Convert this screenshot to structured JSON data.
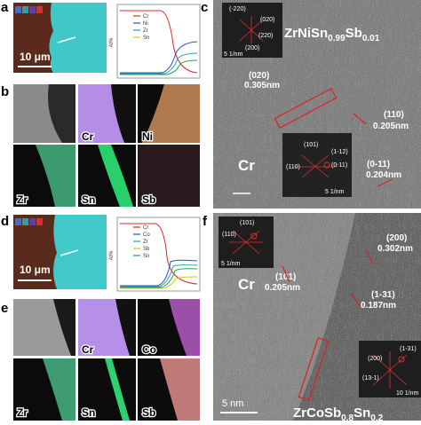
{
  "panels": {
    "a": {
      "label": "a",
      "scale": "10 μm",
      "ylabel": "At%",
      "legend": [
        "Cr",
        "Ni",
        "Zr",
        "Sn"
      ]
    },
    "b": {
      "label": "b",
      "maps": [
        "Cr",
        "Ni",
        "Zr",
        "Sn",
        "Sb"
      ]
    },
    "c": {
      "label": "c",
      "formula": [
        "ZrNiSn",
        "0.99",
        "Sb",
        "0.01"
      ],
      "fft1": [
        "(-220)",
        "(020)",
        "(220)",
        "(200)",
        "5 1/nm"
      ],
      "notes": [
        "(020)",
        "0.305nm",
        "(110)",
        "0.205nm",
        "Cr",
        "(0-11)",
        "0.204nm"
      ],
      "fft2": [
        "(101)",
        "(1-12)",
        "(110)",
        "(0-11)",
        "5 1/nm"
      ]
    },
    "d": {
      "label": "d",
      "scale": "10 μm",
      "ylabel": "At%",
      "legend": [
        "Cr",
        "Co",
        "Zr",
        "Sb",
        "Sn"
      ]
    },
    "e": {
      "label": "e",
      "maps": [
        "Cr",
        "Co",
        "Zr",
        "Sn",
        "Sb"
      ]
    },
    "f": {
      "label": "f",
      "formula": [
        "ZrCoSb",
        "0.8",
        "Sn",
        "0.2"
      ],
      "fft1": [
        "(101)",
        "(110)",
        "5 1/nm"
      ],
      "notes": [
        "Cr",
        "(101)",
        "0.205nm",
        "(200)",
        "0.302nm",
        "(1-31)",
        "0.187nm",
        "5 nm"
      ],
      "fft2": [
        "(200)",
        "(13-1)",
        "(1-31)",
        "10 1/nm"
      ]
    }
  }
}
